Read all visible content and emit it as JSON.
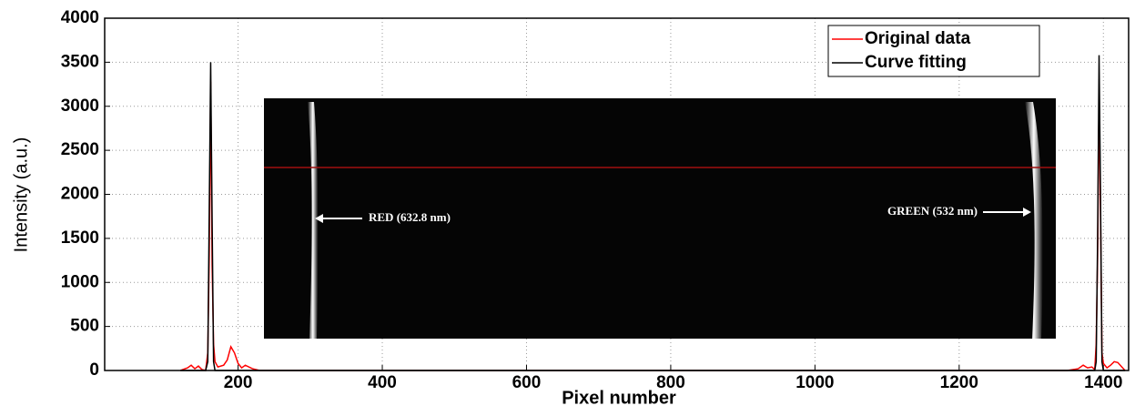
{
  "chart_data": {
    "type": "line",
    "xlabel": "Pixel number",
    "ylabel": "Intensity (a.u.)",
    "x": [
      120,
      130,
      135,
      140,
      145,
      150,
      155,
      158,
      160,
      162,
      164,
      166,
      168,
      172,
      180,
      185,
      190,
      195,
      200,
      205,
      210,
      220,
      230,
      1350,
      1365,
      1372,
      1378,
      1384,
      1388,
      1390,
      1392,
      1394,
      1396,
      1398,
      1400,
      1405,
      1410,
      1415,
      1420,
      1430
    ],
    "series": [
      {
        "name": "Original data",
        "color": "#ff0000",
        "values": [
          0,
          30,
          60,
          20,
          50,
          10,
          0,
          200,
          1300,
          3280,
          1200,
          300,
          100,
          40,
          60,
          120,
          270,
          200,
          80,
          30,
          60,
          20,
          0,
          0,
          20,
          60,
          30,
          40,
          10,
          300,
          1300,
          3150,
          1800,
          200,
          80,
          30,
          60,
          100,
          90,
          0
        ]
      },
      {
        "name": "Curve fitting",
        "color": "#000000",
        "values": [
          0,
          0,
          0,
          0,
          0,
          0,
          0,
          100,
          1800,
          3500,
          1700,
          100,
          0,
          0,
          0,
          0,
          0,
          0,
          0,
          0,
          0,
          0,
          0,
          0,
          0,
          0,
          0,
          0,
          0,
          100,
          1500,
          3580,
          2000,
          100,
          0,
          0,
          0,
          0,
          0,
          0
        ]
      }
    ],
    "xlim": [
      15,
      1435
    ],
    "xticks": [
      200,
      400,
      600,
      800,
      1000,
      1200,
      1400
    ],
    "ylim": [
      0,
      4000
    ],
    "yticks": [
      0,
      500,
      1000,
      1500,
      2000,
      2500,
      3000,
      3500,
      4000
    ],
    "grid": true,
    "legend": "upper right",
    "annotations": [
      "RED (632.8 nm)",
      "GREEN (532 nm)"
    ]
  }
}
